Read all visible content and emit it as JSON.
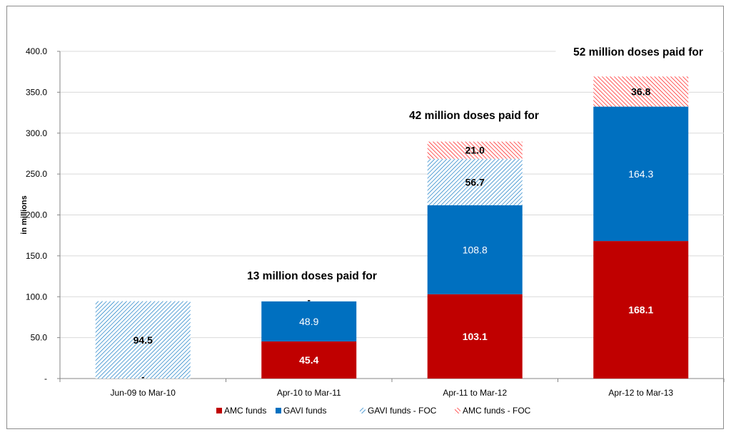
{
  "chart_data": {
    "type": "bar",
    "stacked": true,
    "categories": [
      "Jun-09 to Mar-10",
      "Apr-10 to Mar-11",
      "Apr-11 to Mar-12",
      "Apr-12 to Mar-13"
    ],
    "series": [
      {
        "name": "AMC funds",
        "values": [
          0,
          45.4,
          103.1,
          168.1
        ],
        "labels": [
          "-",
          "45.4",
          "103.1",
          "168.1"
        ],
        "color": "#c00000",
        "pattern": "solid"
      },
      {
        "name": "GAVI funds",
        "values": [
          0,
          48.9,
          108.8,
          164.3
        ],
        "labels": [
          "",
          "48.9",
          "108.8",
          "164.3"
        ],
        "color": "#0070c0",
        "pattern": "solid"
      },
      {
        "name": "GAVI funds - FOC",
        "values": [
          94.5,
          0,
          56.7,
          0
        ],
        "labels": [
          "94.5",
          "-",
          "56.7",
          ""
        ],
        "color": "#0070c0",
        "pattern": "hatch"
      },
      {
        "name": "AMC funds - FOC",
        "values": [
          0,
          0,
          21.0,
          36.8
        ],
        "labels": [
          "",
          "",
          "21.0",
          "36.8"
        ],
        "color": "#ff0000",
        "pattern": "hatch"
      }
    ],
    "ylabel": "in millions",
    "ylim": [
      0,
      400
    ],
    "yticks": [
      0,
      50,
      100,
      150,
      200,
      250,
      300,
      350,
      400
    ],
    "ytick_labels": [
      "-",
      "50.0",
      "100.0",
      "150.0",
      "200.0",
      "250.0",
      "300.0",
      "350.0",
      "400.0"
    ],
    "annotations": [
      {
        "text": "13 million doses paid for",
        "category": "Apr-10 to Mar-11"
      },
      {
        "text": "42 million doses paid for",
        "category": "Apr-11 to Mar-12"
      },
      {
        "text": "52 million doses paid for",
        "category": "Apr-12 to Mar-13"
      }
    ],
    "grid": true,
    "legend_position": "bottom"
  }
}
